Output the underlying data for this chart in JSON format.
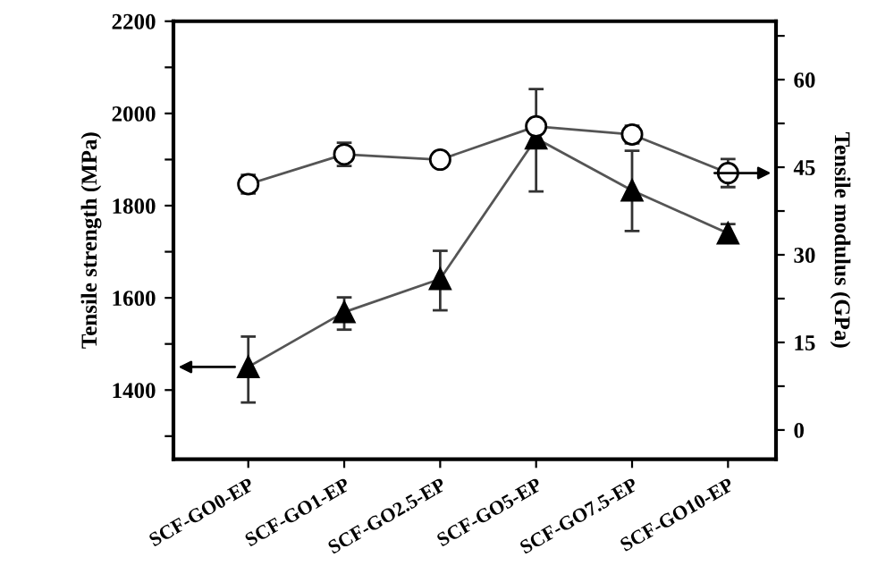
{
  "chart_data": {
    "type": "line",
    "categories": [
      "SCF-GO0-EP",
      "SCF-GO1-EP",
      "SCF-GO2.5-EP",
      "SCF-GO5-EP",
      "SCF-GO7.5-EP",
      "SCF-GO10-EP"
    ],
    "ylabel": "Tensile strength (MPa)",
    "y2label": "Tensile modulus (GPa)",
    "series": [
      {
        "color": "#000000",
        "marker": "triangle",
        "axis": "y",
        "values": [
          1450,
          1569,
          1641,
          1946,
          1833,
          1740
        ],
        "errors": [
          [
            1373,
            1516
          ],
          [
            1531,
            1601
          ],
          [
            1573,
            1702
          ],
          [
            1831,
            2053
          ],
          [
            1745,
            1919
          ],
          [
            1725,
            1760
          ]
        ]
      },
      {
        "color": "#000000",
        "marker": "circle",
        "axis": "y2",
        "values": [
          42.1,
          47.2,
          46.3,
          52.0,
          50.6,
          44.0
        ],
        "errors": [
          1.6,
          2,
          0.7,
          1,
          1.5,
          2.4
        ]
      }
    ],
    "ylim": [
      1250,
      2200
    ],
    "yticks": [
      {
        "value": 1300,
        "label": null
      },
      1400,
      {
        "value": 1500,
        "label": null
      },
      1600,
      {
        "value": 1700,
        "label": null
      },
      1800,
      {
        "value": 1900,
        "label": null
      },
      2000,
      {
        "value": 2100,
        "label": null
      },
      2200
    ],
    "y2lim": [
      -5,
      70
    ],
    "y2ticks": [
      0,
      {
        "value": 7.5,
        "label": null
      },
      15,
      {
        "value": 22.5,
        "label": null
      },
      30,
      {
        "value": 37.5,
        "label": null
      },
      45,
      {
        "value": 52.5,
        "label": null
      },
      60,
      {
        "value": 67.5,
        "label": null
      }
    ],
    "grid": false,
    "legend": false
  }
}
